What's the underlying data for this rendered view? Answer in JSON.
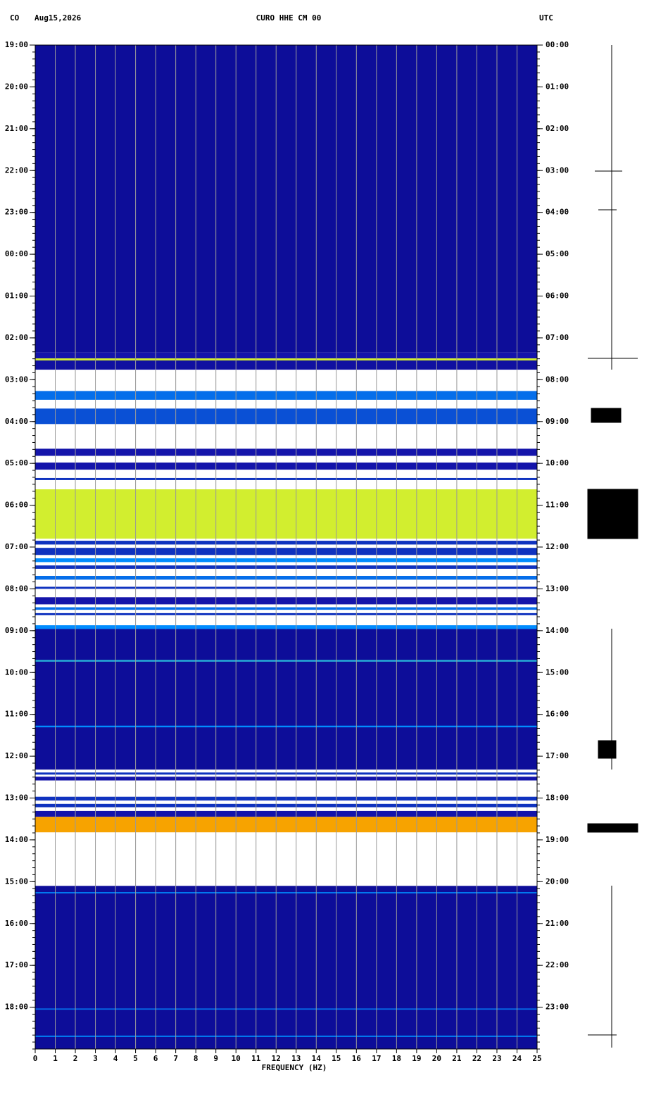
{
  "chart_data": {
    "type": "spectrogram",
    "network": "CO",
    "date": "Aug15,2026",
    "title": "CURO HHE CM 00",
    "timezone": "UTC",
    "xlabel": "FREQUENCY (HZ)",
    "xlim": [
      0,
      25
    ],
    "xticks": [
      0,
      1,
      2,
      3,
      4,
      5,
      6,
      7,
      8,
      9,
      10,
      11,
      12,
      13,
      14,
      15,
      16,
      17,
      18,
      19,
      20,
      21,
      22,
      23,
      24,
      25
    ],
    "ylim": [
      0,
      24
    ],
    "yticks": [
      {
        "value": 0,
        "label": "19:00"
      },
      {
        "value": 1,
        "label": "20:00"
      },
      {
        "value": 2,
        "label": "21:00"
      },
      {
        "value": 3,
        "label": "22:00"
      },
      {
        "value": 4,
        "label": "23:00"
      },
      {
        "value": 5,
        "label": "00:00"
      },
      {
        "value": 6,
        "label": "01:00"
      },
      {
        "value": 7,
        "label": "02:00"
      },
      {
        "value": 8,
        "label": "03:00"
      },
      {
        "value": 9,
        "label": "04:00"
      },
      {
        "value": 10,
        "label": "05:00"
      },
      {
        "value": 11,
        "label": "06:00"
      },
      {
        "value": 12,
        "label": "07:00"
      },
      {
        "value": 13,
        "label": "08:00"
      },
      {
        "value": 14,
        "label": "09:00"
      },
      {
        "value": 15,
        "label": "10:00"
      },
      {
        "value": 16,
        "label": "11:00"
      },
      {
        "value": 17,
        "label": "12:00"
      },
      {
        "value": 18,
        "label": "13:00"
      },
      {
        "value": 19,
        "label": "14:00"
      },
      {
        "value": 20,
        "label": "15:00"
      },
      {
        "value": 21,
        "label": "16:00"
      },
      {
        "value": 22,
        "label": "17:00"
      },
      {
        "value": 23,
        "label": "18:00"
      }
    ],
    "y2ticks": [
      {
        "value": 0,
        "label": "00:00"
      },
      {
        "value": 1,
        "label": "01:00"
      },
      {
        "value": 2,
        "label": "02:00"
      },
      {
        "value": 3,
        "label": "03:00"
      },
      {
        "value": 4,
        "label": "04:00"
      },
      {
        "value": 5,
        "label": "05:00"
      },
      {
        "value": 6,
        "label": "06:00"
      },
      {
        "value": 7,
        "label": "07:00"
      },
      {
        "value": 8,
        "label": "08:00"
      },
      {
        "value": 9,
        "label": "09:00"
      },
      {
        "value": 10,
        "label": "10:00"
      },
      {
        "value": 11,
        "label": "11:00"
      },
      {
        "value": 12,
        "label": "12:00"
      },
      {
        "value": 13,
        "label": "13:00"
      },
      {
        "value": 14,
        "label": "14:00"
      },
      {
        "value": 15,
        "label": "15:00"
      },
      {
        "value": 16,
        "label": "16:00"
      },
      {
        "value": 17,
        "label": "17:00"
      },
      {
        "value": 18,
        "label": "18:00"
      },
      {
        "value": 19,
        "label": "19:00"
      },
      {
        "value": 20,
        "label": "20:00"
      },
      {
        "value": 21,
        "label": "21:00"
      },
      {
        "value": 22,
        "label": "22:00"
      },
      {
        "value": 23,
        "label": "23:00"
      }
    ],
    "segments": [
      {
        "start": 0,
        "end": 7.35,
        "level": 0.1
      },
      {
        "start": 7.35,
        "end": 7.49,
        "level": 0.15
      },
      {
        "start": 7.49,
        "end": 7.54,
        "level": 0.6
      },
      {
        "start": 7.54,
        "end": 7.76,
        "level": 0.12
      },
      {
        "start": 8.27,
        "end": 8.48,
        "level": 0.3
      },
      {
        "start": 8.69,
        "end": 9.06,
        "level": 0.25
      },
      {
        "start": 9.65,
        "end": 9.82,
        "level": 0.15
      },
      {
        "start": 9.98,
        "end": 10.15,
        "level": 0.15
      },
      {
        "start": 10.35,
        "end": 10.4,
        "level": 0.2
      },
      {
        "start": 10.62,
        "end": 11.8,
        "level": 0.6
      },
      {
        "start": 11.85,
        "end": 11.94,
        "level": 0.2
      },
      {
        "start": 12.02,
        "end": 12.19,
        "level": 0.2
      },
      {
        "start": 12.27,
        "end": 12.36,
        "level": 0.35
      },
      {
        "start": 12.44,
        "end": 12.52,
        "level": 0.2
      },
      {
        "start": 12.69,
        "end": 12.78,
        "level": 0.3
      },
      {
        "start": 12.95,
        "end": 13.0,
        "level": 0.2
      },
      {
        "start": 13.2,
        "end": 13.37,
        "level": 0.15
      },
      {
        "start": 13.44,
        "end": 13.5,
        "level": 0.3
      },
      {
        "start": 13.58,
        "end": 13.63,
        "level": 0.2
      },
      {
        "start": 13.87,
        "end": 13.96,
        "level": 0.35
      },
      {
        "start": 13.96,
        "end": 17.32,
        "level": 0.1
      },
      {
        "start": 14.7,
        "end": 14.74,
        "level": 0.4
      },
      {
        "start": 16.27,
        "end": 16.31,
        "level": 0.35
      },
      {
        "start": 17.39,
        "end": 17.44,
        "level": 0.2
      },
      {
        "start": 17.49,
        "end": 17.58,
        "level": 0.15
      },
      {
        "start": 17.97,
        "end": 18.06,
        "level": 0.2
      },
      {
        "start": 18.14,
        "end": 18.22,
        "level": 0.2
      },
      {
        "start": 18.31,
        "end": 18.45,
        "level": 0.15
      },
      {
        "start": 18.45,
        "end": 18.82,
        "level": 0.7
      },
      {
        "start": 20.1,
        "end": 24,
        "level": 0.1
      },
      {
        "start": 20.25,
        "end": 20.28,
        "level": 0.35
      },
      {
        "start": 23.03,
        "end": 23.06,
        "level": 0.3
      },
      {
        "start": 23.68,
        "end": 23.71,
        "level": 0.35
      }
    ]
  }
}
